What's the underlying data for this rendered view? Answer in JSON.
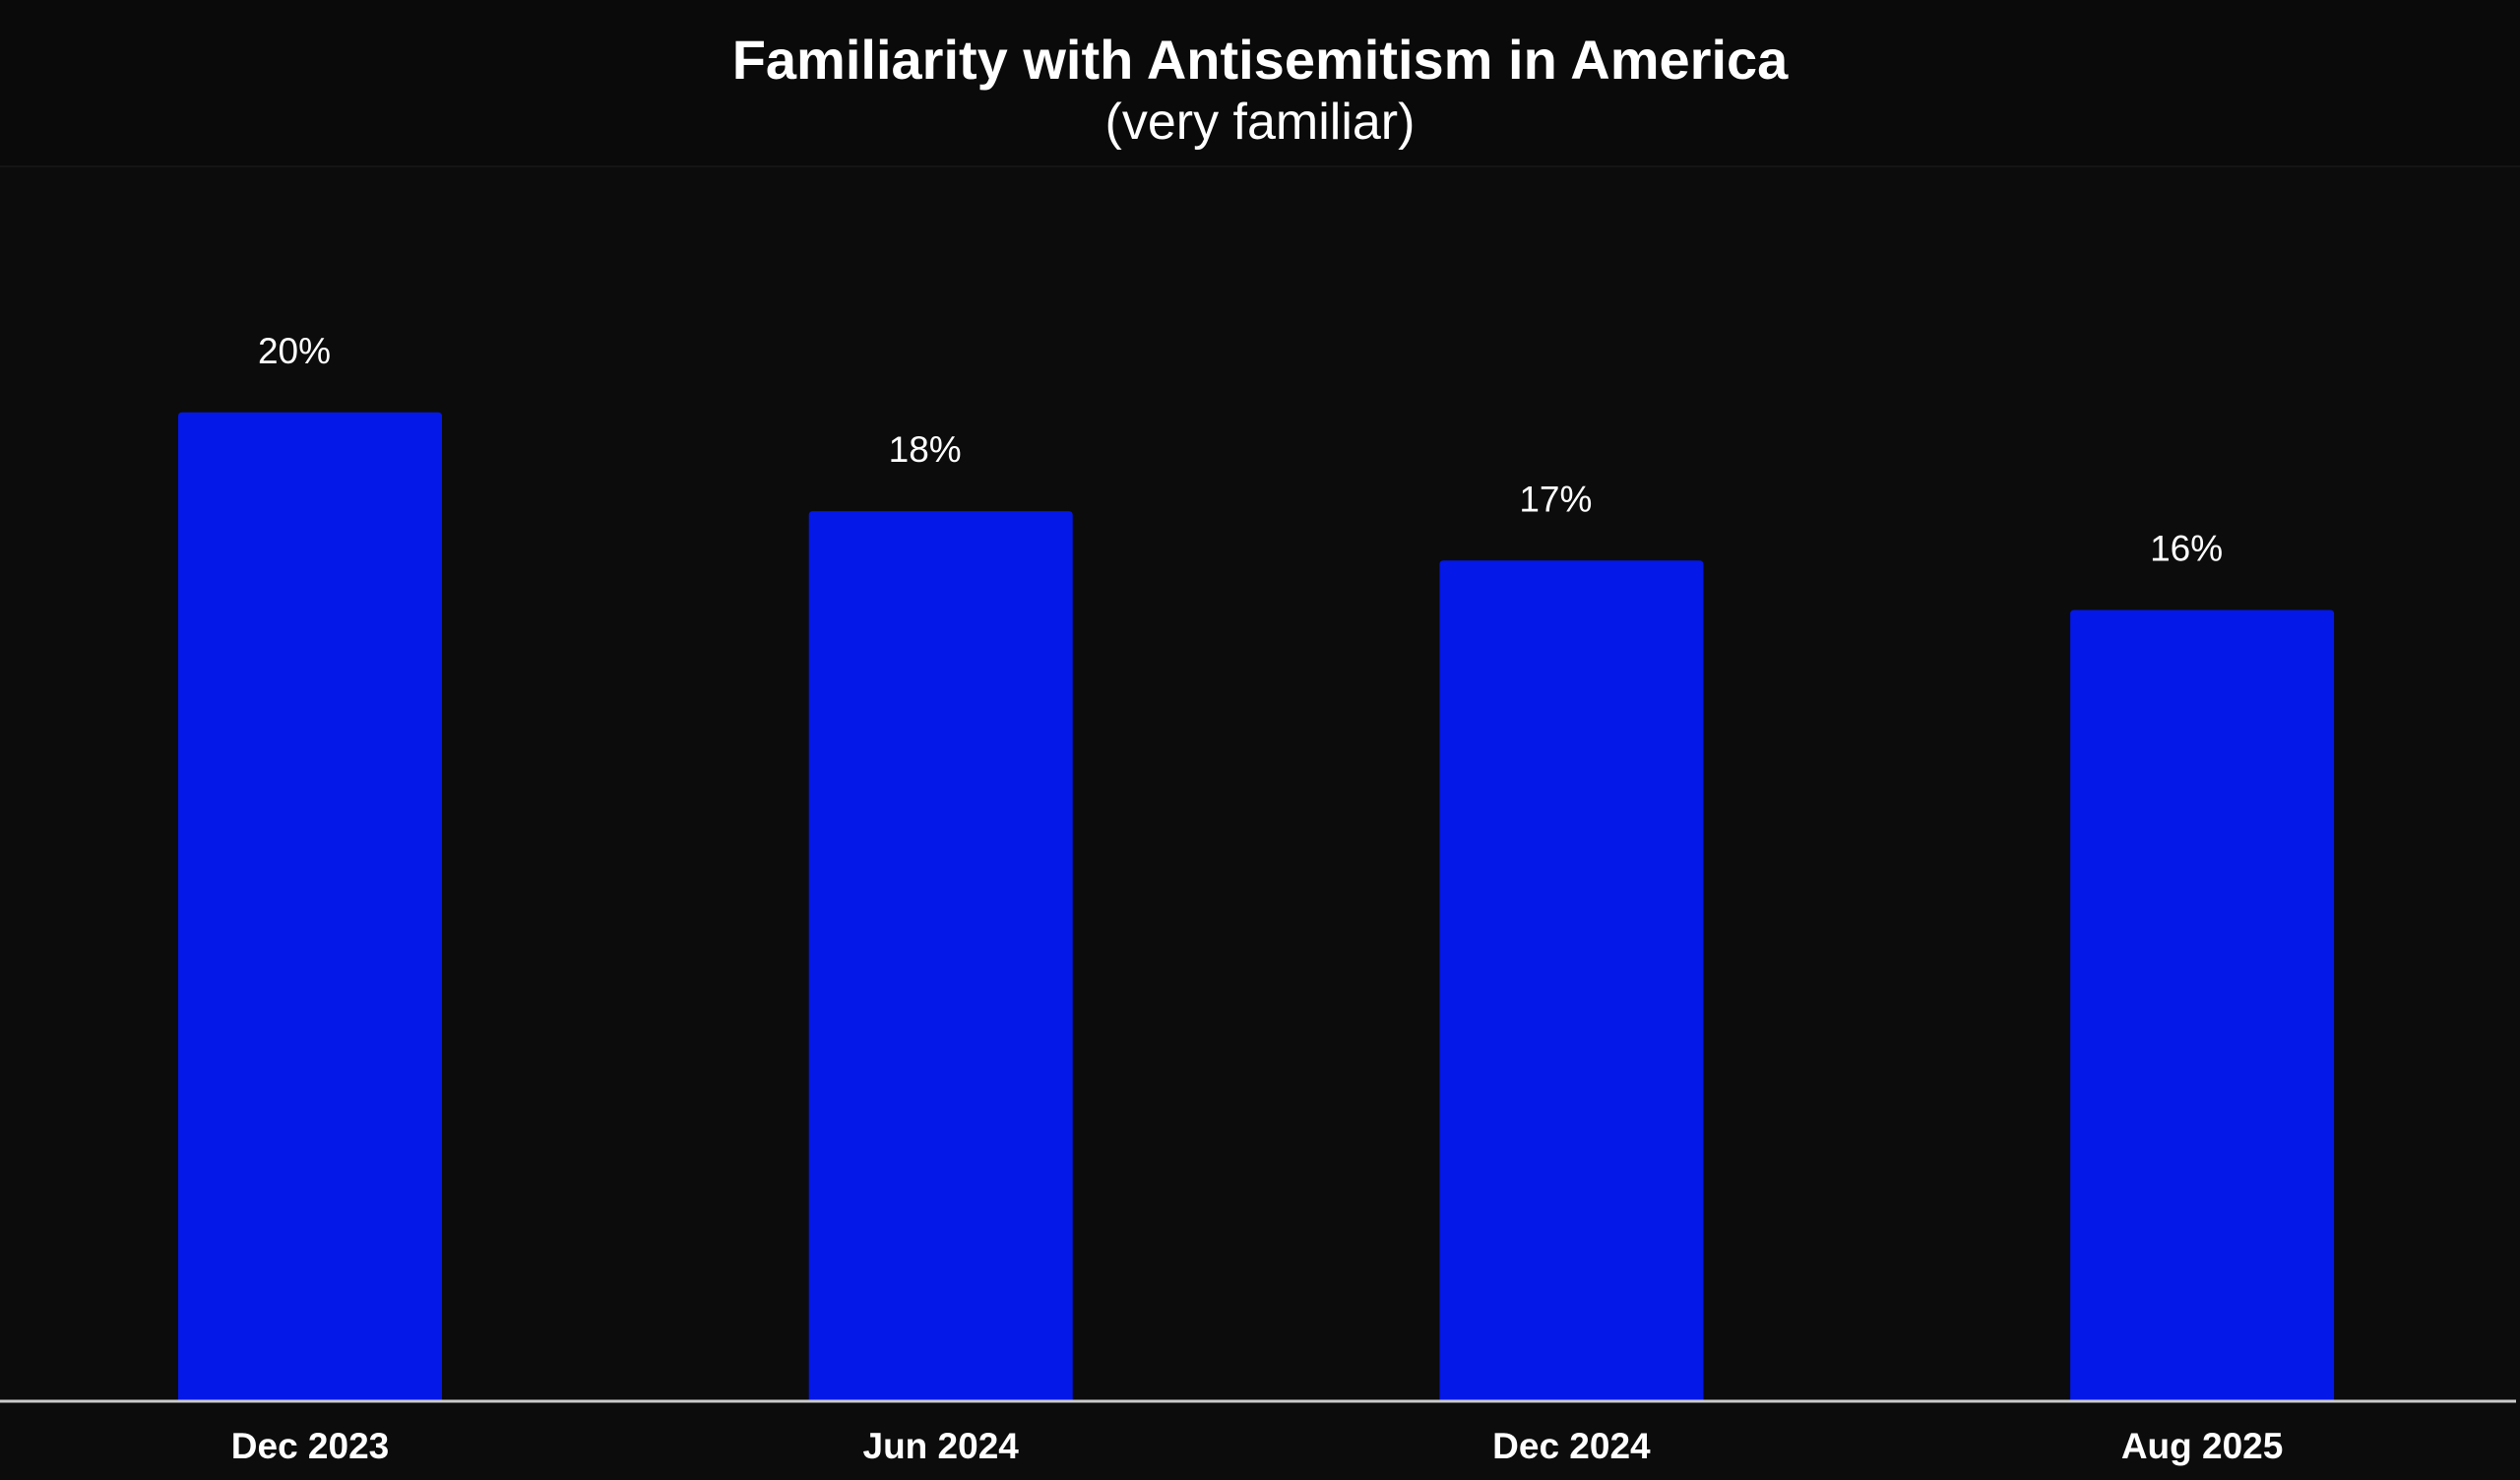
{
  "chart_data": {
    "type": "bar",
    "title": "Familiarity with Antisemitism in America",
    "subtitle": "(very familiar)",
    "categories": [
      "Dec 2023",
      "Jun 2024",
      "Dec 2024",
      "Aug 2025"
    ],
    "values": [
      20,
      18,
      17,
      16
    ],
    "data_labels": [
      "20%",
      "18%",
      "17%",
      "16%"
    ],
    "xlabel": "",
    "ylabel": "",
    "ylim": [
      0,
      25
    ],
    "grid": false,
    "legend": "none",
    "colors": {
      "bar": "#0418E8",
      "background": "#0c0c0c",
      "text": "#ffffff",
      "axis": "#cccccc"
    }
  }
}
